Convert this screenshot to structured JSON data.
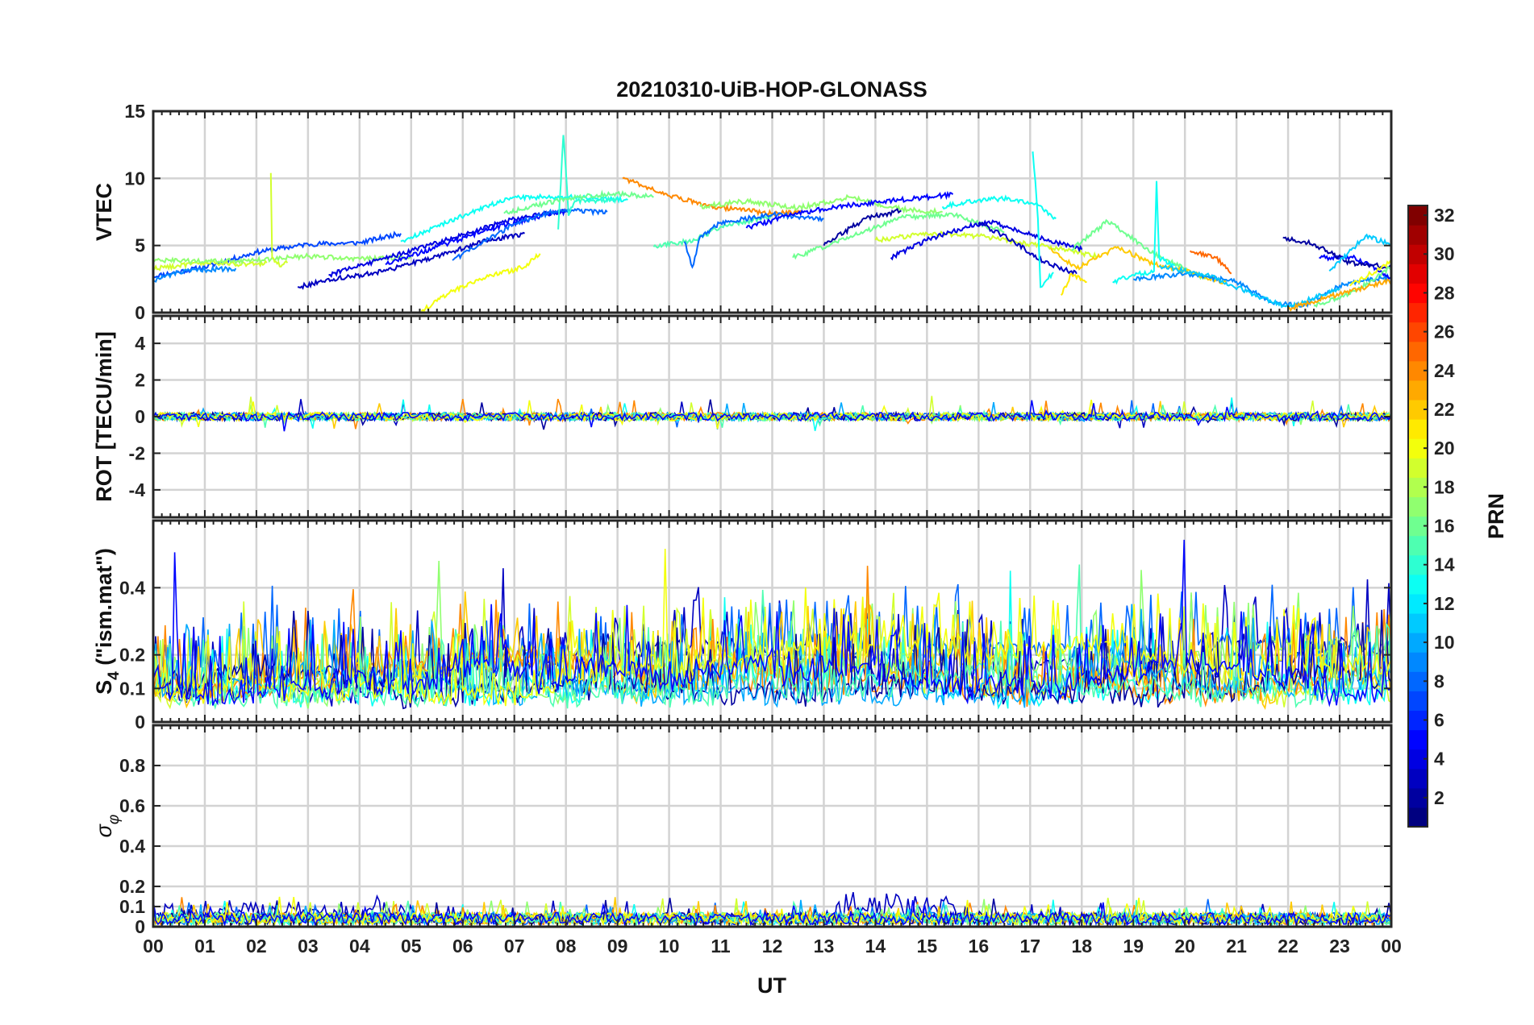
{
  "chart_data": {
    "type": "line",
    "title": "20210310-UiB-HOP-GLONASS",
    "xlabel": "UT",
    "x_ticks": [
      "00",
      "01",
      "02",
      "03",
      "04",
      "05",
      "06",
      "07",
      "08",
      "09",
      "10",
      "11",
      "12",
      "13",
      "14",
      "15",
      "16",
      "17",
      "18",
      "19",
      "20",
      "21",
      "22",
      "23",
      "00"
    ],
    "xlim_hours": [
      0,
      24
    ],
    "colorbar": {
      "label": "PRN",
      "colormap": "jet",
      "range": [
        1,
        32
      ],
      "ticks": [
        "2",
        "4",
        "6",
        "8",
        "10",
        "12",
        "14",
        "16",
        "18",
        "20",
        "22",
        "24",
        "26",
        "28",
        "30",
        "32"
      ]
    },
    "panels": [
      {
        "id": "vtec",
        "ylabel": "VTEC",
        "ylim": [
          0,
          15
        ],
        "yticks": [
          0,
          5,
          10,
          15
        ],
        "ytick_labels": [
          "0",
          "5",
          "10",
          "15"
        ],
        "series": [
          {
            "prn": 7,
            "x": [
              0,
              1,
              2,
              3,
              4,
              4.8
            ],
            "y": [
              2.7,
              3.4,
              4.5,
              5.1,
              5.2,
              5.9
            ]
          },
          {
            "prn": 9,
            "x": [
              0,
              0.5,
              1,
              1.6
            ],
            "y": [
              2.4,
              3.0,
              3.2,
              3.3
            ]
          },
          {
            "prn": 19,
            "x": [
              0,
              1,
              2,
              2.2
            ],
            "y": [
              3.3,
              3.7,
              3.6,
              3.7
            ]
          },
          {
            "prn": 17,
            "x": [
              0,
              1,
              2,
              3,
              4,
              5
            ],
            "y": [
              3.9,
              3.8,
              3.9,
              4.2,
              4.0,
              4.1
            ]
          },
          {
            "prn": 19,
            "x": [
              2.28,
              2.3,
              2.45,
              2.6
            ],
            "y": [
              10.4,
              4.2,
              3.5,
              3.7
            ]
          },
          {
            "prn": 3,
            "x": [
              2.8,
              3.5,
              4.5,
              5.5,
              6.5,
              7.2
            ],
            "y": [
              1.9,
              2.5,
              3.1,
              4.2,
              5.4,
              5.9
            ]
          },
          {
            "prn": 4,
            "x": [
              3.4,
              4,
              5,
              6,
              7,
              8
            ],
            "y": [
              2.8,
              3.5,
              4.6,
              5.8,
              7.0,
              7.6
            ]
          },
          {
            "prn": 5,
            "x": [
              4.5,
              5.5,
              6.5,
              7.5,
              8.1
            ],
            "y": [
              3.6,
              4.9,
              6.2,
              7.2,
              7.6
            ]
          },
          {
            "prn": 8,
            "x": [
              5.8,
              6.3,
              7,
              7.8,
              8.8
            ],
            "y": [
              3.9,
              5.0,
              6.6,
              7.6,
              7.5
            ]
          },
          {
            "prn": 13,
            "x": [
              4.8,
              5.5,
              6.3,
              7,
              8,
              9.2
            ],
            "y": [
              5.3,
              6.4,
              7.7,
              8.6,
              8.6,
              8.4
            ]
          },
          {
            "prn": 20,
            "x": [
              5.2,
              5.8,
              6.5,
              7.2,
              7.5
            ],
            "y": [
              0.1,
              1.6,
              2.7,
              3.4,
              4.4
            ]
          },
          {
            "prn": 14,
            "x": [
              7.85,
              7.95,
              8.0,
              8.05,
              8.2,
              9
            ],
            "y": [
              6.2,
              13.2,
              10.5,
              7.4,
              8.3,
              8.4
            ]
          },
          {
            "prn": 16,
            "x": [
              6.8,
              8,
              9,
              9.7
            ],
            "y": [
              7.4,
              8.5,
              8.9,
              8.6
            ]
          },
          {
            "prn": 24,
            "x": [
              9.1,
              10,
              11,
              12,
              12.6
            ],
            "y": [
              10.0,
              8.7,
              7.8,
              7.4,
              7.5
            ]
          },
          {
            "prn": 15,
            "x": [
              9.7,
              10.5,
              11,
              12
            ],
            "y": [
              4.9,
              5.4,
              6.4,
              7.2
            ]
          },
          {
            "prn": 8,
            "x": [
              10.3,
              10.45,
              10.6,
              11,
              12,
              13
            ],
            "y": [
              5.3,
              3.3,
              5.6,
              6.7,
              7.3,
              7.0
            ]
          },
          {
            "prn": 17,
            "x": [
              10.6,
              11.5,
              12.5,
              13.5,
              14.5,
              15.3
            ],
            "y": [
              7.9,
              8.3,
              7.8,
              8.6,
              7.7,
              7.5
            ]
          },
          {
            "prn": 5,
            "x": [
              11.5,
              12.5,
              13.5,
              14.5,
              15.5
            ],
            "y": [
              6.3,
              7.4,
              8.0,
              8.4,
              8.8
            ]
          },
          {
            "prn": 2,
            "x": [
              13,
              13.8,
              14.5
            ],
            "y": [
              5.0,
              7.0,
              7.6
            ]
          },
          {
            "prn": 19,
            "x": [
              14,
              15,
              16,
              17,
              17.8,
              18.3
            ],
            "y": [
              5.4,
              5.9,
              5.7,
              5.1,
              4.6,
              4.2
            ]
          },
          {
            "prn": 16,
            "x": [
              12.4,
              13.5,
              14.5,
              15.5,
              16.5
            ],
            "y": [
              4.1,
              5.6,
              7.1,
              7.3,
              6.0
            ]
          },
          {
            "prn": 13,
            "x": [
              15.3,
              16,
              16.6,
              17.1,
              17.5
            ],
            "y": [
              7.9,
              8.4,
              8.5,
              8.1,
              7.0
            ]
          },
          {
            "prn": 4,
            "x": [
              14.3,
              15,
              15.7,
              16.2,
              17,
              18
            ],
            "y": [
              4.1,
              5.4,
              6.3,
              6.8,
              5.8,
              4.7
            ]
          },
          {
            "prn": 3,
            "x": [
              16,
              16.6,
              17.3,
              17.9
            ],
            "y": [
              6.7,
              5.5,
              3.7,
              2.9
            ]
          },
          {
            "prn": 13,
            "x": [
              17.05,
              17.1,
              17.15,
              17.2,
              17.45
            ],
            "y": [
              12.0,
              9.8,
              7.0,
              1.9,
              3.0
            ]
          },
          {
            "prn": 16,
            "x": [
              17.8,
              18.5,
              19.4,
              20.4
            ],
            "y": [
              4.7,
              6.8,
              4.4,
              2.5
            ]
          },
          {
            "prn": 22,
            "x": [
              17.4,
              17.9,
              18.7,
              19.4,
              20,
              20.8
            ],
            "y": [
              4.8,
              3.3,
              4.9,
              3.6,
              3.1,
              2.2
            ]
          },
          {
            "prn": 21,
            "x": [
              17.6,
              17.8,
              18.1
            ],
            "y": [
              1.3,
              2.9,
              2.3
            ]
          },
          {
            "prn": 13,
            "x": [
              18.6,
              19.1,
              19.4,
              19.45,
              19.5,
              19.8
            ],
            "y": [
              2.3,
              2.9,
              3.0,
              9.8,
              4.1,
              3.5
            ]
          },
          {
            "prn": 25,
            "x": [
              20.1,
              20.6,
              20.9
            ],
            "y": [
              4.6,
              4.1,
              2.9
            ]
          },
          {
            "prn": 9,
            "x": [
              19,
              20,
              21,
              21.7,
              22.3,
              23,
              24
            ],
            "y": [
              2.5,
              2.9,
              2.3,
              0.7,
              0.5,
              2.0,
              2.7
            ]
          },
          {
            "prn": 11,
            "x": [
              19.5,
              20.5,
              21.5,
              22,
              23
            ],
            "y": [
              3.5,
              2.7,
              1.1,
              0.4,
              1.8
            ]
          },
          {
            "prn": 5,
            "x": [
              22.6,
              23.3,
              24
            ],
            "y": [
              4.1,
              4.1,
              2.6
            ]
          },
          {
            "prn": 2,
            "x": [
              21.9,
              22.5,
              23.2,
              24
            ],
            "y": [
              5.6,
              5.1,
              3.7,
              3.4
            ]
          },
          {
            "prn": 11,
            "x": [
              22.8,
              23.5,
              24
            ],
            "y": [
              3.1,
              5.7,
              5.1
            ]
          },
          {
            "prn": 16,
            "x": [
              22.5,
              23.3,
              24
            ],
            "y": [
              0.5,
              1.6,
              3.4
            ]
          },
          {
            "prn": 23,
            "x": [
              22,
              23,
              24
            ],
            "y": [
              0.3,
              1.4,
              2.4
            ]
          },
          {
            "prn": 20,
            "x": [
              23.2,
              24
            ],
            "y": [
              2.0,
              3.8
            ]
          }
        ]
      },
      {
        "id": "rot",
        "ylabel": "ROT [TECU/min]",
        "ylim": [
          -5.5,
          5.5
        ],
        "yticks": [
          -4,
          -2,
          0,
          2,
          4
        ],
        "ytick_labels": [
          "-4",
          "-2",
          "0",
          "2",
          "4"
        ]
      },
      {
        "id": "s4",
        "ylabel_main": "S",
        "ylabel_sub": "4",
        "ylabel_rest": " (\"ism.mat\")",
        "ylim": [
          0,
          0.6
        ],
        "yticks": [
          0,
          0.1,
          0.2,
          0.4
        ],
        "ytick_labels": [
          "0",
          "0.1",
          "0.2",
          "0.4"
        ]
      },
      {
        "id": "sigma",
        "ylabel_main": "σ",
        "ylabel_sub": "φ",
        "ylim": [
          0,
          1
        ],
        "yticks": [
          0,
          0.1,
          0.2,
          0.4,
          0.6,
          0.8
        ],
        "ytick_labels": [
          "0",
          "0.1",
          "0.2",
          "0.4",
          "0.6",
          "0.8"
        ]
      }
    ]
  }
}
